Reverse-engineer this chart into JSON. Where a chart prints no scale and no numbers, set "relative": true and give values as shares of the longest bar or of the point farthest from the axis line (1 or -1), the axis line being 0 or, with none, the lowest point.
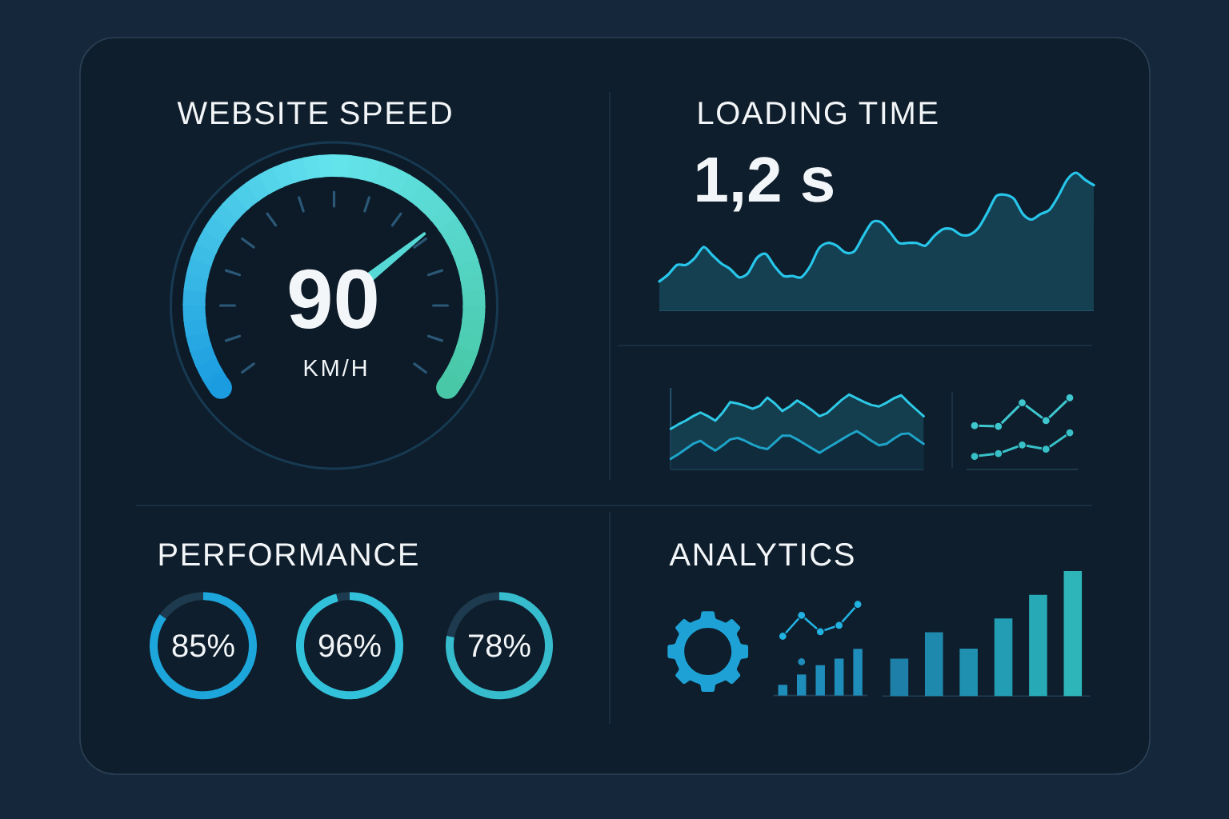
{
  "chart_data": [
    {
      "type": "other",
      "title": "WEBSITE SPEED",
      "annotations": [
        "90",
        "KM/H"
      ]
    },
    {
      "type": "area",
      "title": "LOADING TIME",
      "annotations": [
        "1,2 s"
      ],
      "relative": true,
      "categories": [
        null,
        null,
        null,
        null,
        null,
        null,
        null,
        null,
        null,
        null,
        null,
        null,
        null,
        null,
        null,
        null,
        null,
        null,
        null,
        null,
        null,
        null,
        null,
        null,
        null,
        null,
        null,
        null,
        null,
        null,
        null,
        null,
        null,
        null,
        null,
        null,
        null,
        null,
        null,
        null,
        null,
        null,
        null,
        null,
        null,
        null,
        null,
        null,
        null,
        null
      ],
      "series": [
        {
          "color": "#27c6ea",
          "values": [
            0.21,
            0.26,
            0.33,
            0.33,
            0.38,
            0.46,
            0.4,
            0.34,
            0.3,
            0.24,
            0.27,
            0.38,
            0.41,
            0.32,
            0.25,
            0.25,
            0.24,
            0.32,
            0.45,
            0.49,
            0.47,
            0.42,
            0.43,
            0.54,
            0.64,
            0.64,
            0.57,
            0.49,
            0.49,
            0.49,
            0.47,
            0.54,
            0.59,
            0.59,
            0.55,
            0.55,
            0.6,
            0.71,
            0.83,
            0.84,
            0.81,
            0.7,
            0.66,
            0.7,
            0.73,
            0.83,
            0.95,
            1.0,
            0.95,
            0.91
          ]
        }
      ]
    },
    {
      "type": "area",
      "relative": true,
      "categories": [
        null,
        null,
        null,
        null,
        null,
        null,
        null,
        null,
        null,
        null,
        null,
        null,
        null,
        null,
        null,
        null,
        null,
        null,
        null,
        null,
        null,
        null,
        null,
        null,
        null,
        null,
        null,
        null,
        null,
        null,
        null,
        null,
        null,
        null,
        null
      ],
      "series": [
        {
          "color": "#2dc9e6",
          "values": [
            0.54,
            0.6,
            0.65,
            0.71,
            0.76,
            0.71,
            0.65,
            0.76,
            0.9,
            0.88,
            0.85,
            0.81,
            0.85,
            0.96,
            0.88,
            0.78,
            0.84,
            0.92,
            0.86,
            0.79,
            0.71,
            0.75,
            0.84,
            0.93,
            1.0,
            0.95,
            0.9,
            0.86,
            0.84,
            0.89,
            0.95,
            0.99,
            0.89,
            0.8,
            0.71
          ]
        },
        {
          "color": "#1ea3c8",
          "values": [
            0.14,
            0.2,
            0.27,
            0.34,
            0.38,
            0.31,
            0.25,
            0.32,
            0.4,
            0.42,
            0.38,
            0.33,
            0.29,
            0.27,
            0.36,
            0.45,
            0.45,
            0.4,
            0.34,
            0.28,
            0.22,
            0.28,
            0.34,
            0.4,
            0.46,
            0.51,
            0.45,
            0.38,
            0.32,
            0.34,
            0.41,
            0.47,
            0.48,
            0.41,
            0.34
          ]
        }
      ]
    },
    {
      "type": "line",
      "relative": true,
      "marker": "circle",
      "categories": [
        null,
        null,
        null,
        null,
        null
      ],
      "series": [
        {
          "color": "#3ec7cf",
          "values": [
            0.61,
            0.6,
            0.93,
            0.68,
            1.0
          ]
        },
        {
          "color": "#38c0c8",
          "values": [
            0.18,
            0.22,
            0.34,
            0.28,
            0.51
          ]
        }
      ]
    },
    {
      "type": "donut",
      "title": "PERFORMANCE",
      "categories": [
        null,
        null
      ],
      "values": [
        85,
        15
      ],
      "colors": [
        "#1da6dc",
        "#1d3a4e"
      ],
      "value_labels": [
        "85%",
        null
      ]
    },
    {
      "type": "donut",
      "categories": [
        null,
        null
      ],
      "values": [
        96,
        4
      ],
      "colors": [
        "#31c1da",
        "#1d3a4e"
      ],
      "value_labels": [
        "96%",
        null
      ]
    },
    {
      "type": "donut",
      "categories": [
        null,
        null
      ],
      "values": [
        78,
        22
      ],
      "colors": [
        "#36bccd",
        "#1d3a4e"
      ],
      "value_labels": [
        "78%",
        null
      ]
    },
    {
      "type": "line",
      "title": "ANALYTICS",
      "relative": true,
      "marker": "circle",
      "categories": [
        null,
        null,
        null,
        null,
        null
      ],
      "series": [
        {
          "color": "#22b2e2",
          "values": [
            0.65,
            0.88,
            0.7,
            0.77,
            1.0
          ]
        },
        {
          "color": "#1f8dba",
          "values": [
            null,
            0.37,
            null,
            null,
            null
          ]
        }
      ]
    },
    {
      "type": "bar",
      "relative": true,
      "categories": [
        null,
        null,
        null,
        null,
        null
      ],
      "color": "#1f8dba",
      "values": [
        0.23,
        0.45,
        0.65,
        0.79,
        1.0
      ]
    },
    {
      "type": "bar",
      "relative": true,
      "categories": [
        null,
        null,
        null,
        null,
        null,
        null
      ],
      "colors": [
        "#1e7fa8",
        "#1f88ad",
        "#2090b0",
        "#239db3",
        "#27a9b6",
        "#2db5b9"
      ],
      "values": [
        0.3,
        0.51,
        0.38,
        0.62,
        0.81,
        1.0
      ]
    }
  ]
}
